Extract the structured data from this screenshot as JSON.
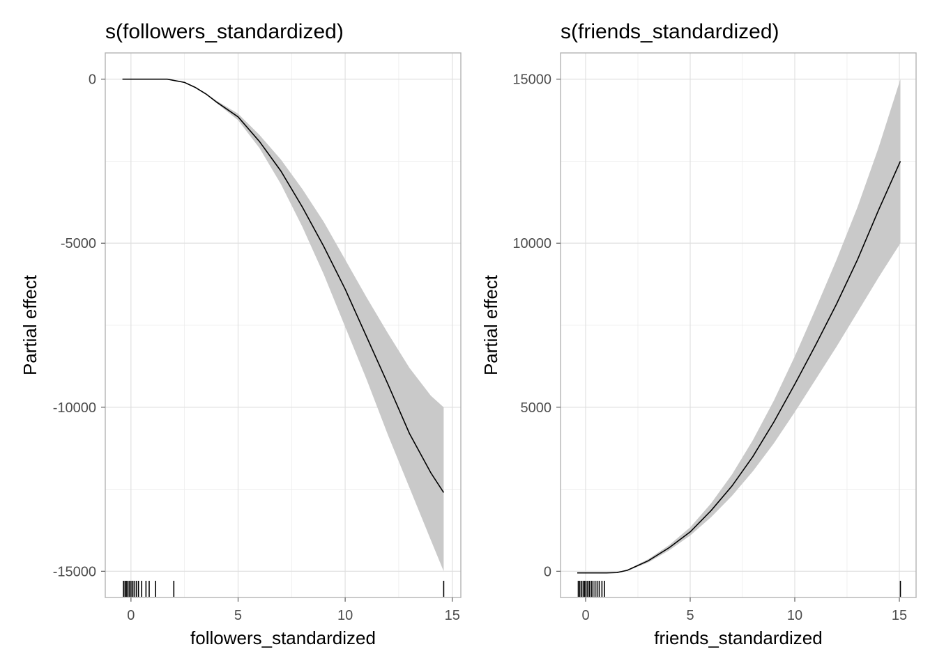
{
  "chart_data": [
    {
      "type": "line",
      "title": "s(followers_standardized)",
      "xlabel": "followers_standardized",
      "ylabel": "Partial effect",
      "xlim": [
        -1.2,
        15.4
      ],
      "ylim": [
        -15800,
        800
      ],
      "x_ticks": [
        0,
        5,
        10,
        15
      ],
      "y_ticks": [
        0,
        -5000,
        -10000,
        -15000
      ],
      "x_tick_labels": [
        "0",
        "5",
        "10",
        "15"
      ],
      "y_tick_labels": [
        "0",
        "-5000",
        "-10000",
        "-15000"
      ],
      "grid": true,
      "series": [
        {
          "style": "smooth line with confidence band",
          "x": [
            -0.4,
            0,
            1,
            1.7,
            2.5,
            3,
            3.5,
            4,
            5,
            6,
            7,
            8,
            9,
            10,
            11,
            12,
            13,
            14,
            14.6
          ],
          "y": [
            0,
            0,
            0,
            0,
            -100,
            -250,
            -450,
            -700,
            -1150,
            -1900,
            -2800,
            -3900,
            -5100,
            -6400,
            -7850,
            -9300,
            -10800,
            -12000,
            -12600
          ],
          "lower": [
            0,
            0,
            0,
            0,
            -100,
            -250,
            -460,
            -730,
            -1250,
            -2100,
            -3200,
            -4500,
            -5950,
            -7550,
            -9150,
            -10850,
            -12450,
            -14050,
            -15000
          ],
          "upper": [
            0,
            0,
            0,
            0,
            -90,
            -240,
            -430,
            -660,
            -1050,
            -1700,
            -2450,
            -3350,
            -4350,
            -5500,
            -6650,
            -7750,
            -8800,
            -9650,
            -10000
          ]
        }
      ],
      "rug": [
        -0.35,
        -0.28,
        -0.22,
        -0.15,
        -0.08,
        0.0,
        0.08,
        0.15,
        0.25,
        0.35,
        0.5,
        0.7,
        0.85,
        1.15,
        2.0,
        14.6
      ]
    },
    {
      "type": "line",
      "title": "s(friends_standardized)",
      "xlabel": "friends_standardized",
      "ylabel": "Partial effect",
      "xlim": [
        -1.2,
        15.8
      ],
      "ylim": [
        -800,
        15800
      ],
      "x_ticks": [
        0,
        5,
        10,
        15
      ],
      "y_ticks": [
        0,
        5000,
        10000,
        15000
      ],
      "x_tick_labels": [
        "0",
        "5",
        "10",
        "15"
      ],
      "y_tick_labels": [
        "0",
        "5000",
        "10000",
        "15000"
      ],
      "grid": true,
      "series": [
        {
          "style": "smooth line with confidence band",
          "x": [
            -0.4,
            0,
            1,
            1.5,
            2,
            3,
            4,
            5,
            6,
            7,
            8,
            9,
            10,
            11,
            12,
            13,
            14,
            15.05
          ],
          "y": [
            -50,
            -50,
            -50,
            -40,
            30,
            320,
            720,
            1200,
            1850,
            2600,
            3500,
            4550,
            5700,
            6900,
            8150,
            9500,
            11000,
            12500
          ],
          "lower": [
            -50,
            -50,
            -55,
            -50,
            10,
            270,
            640,
            1090,
            1650,
            2300,
            3050,
            3900,
            4850,
            5850,
            6850,
            7900,
            8950,
            10000
          ],
          "upper": [
            -50,
            -50,
            -45,
            -30,
            50,
            370,
            800,
            1340,
            2070,
            2950,
            4000,
            5200,
            6550,
            8000,
            9500,
            11100,
            12900,
            15000
          ]
        }
      ],
      "rug": [
        -0.35,
        -0.28,
        -0.2,
        -0.12,
        -0.05,
        0.02,
        0.1,
        0.18,
        0.27,
        0.35,
        0.45,
        0.55,
        0.65,
        0.78,
        0.9,
        15.05
      ]
    }
  ]
}
